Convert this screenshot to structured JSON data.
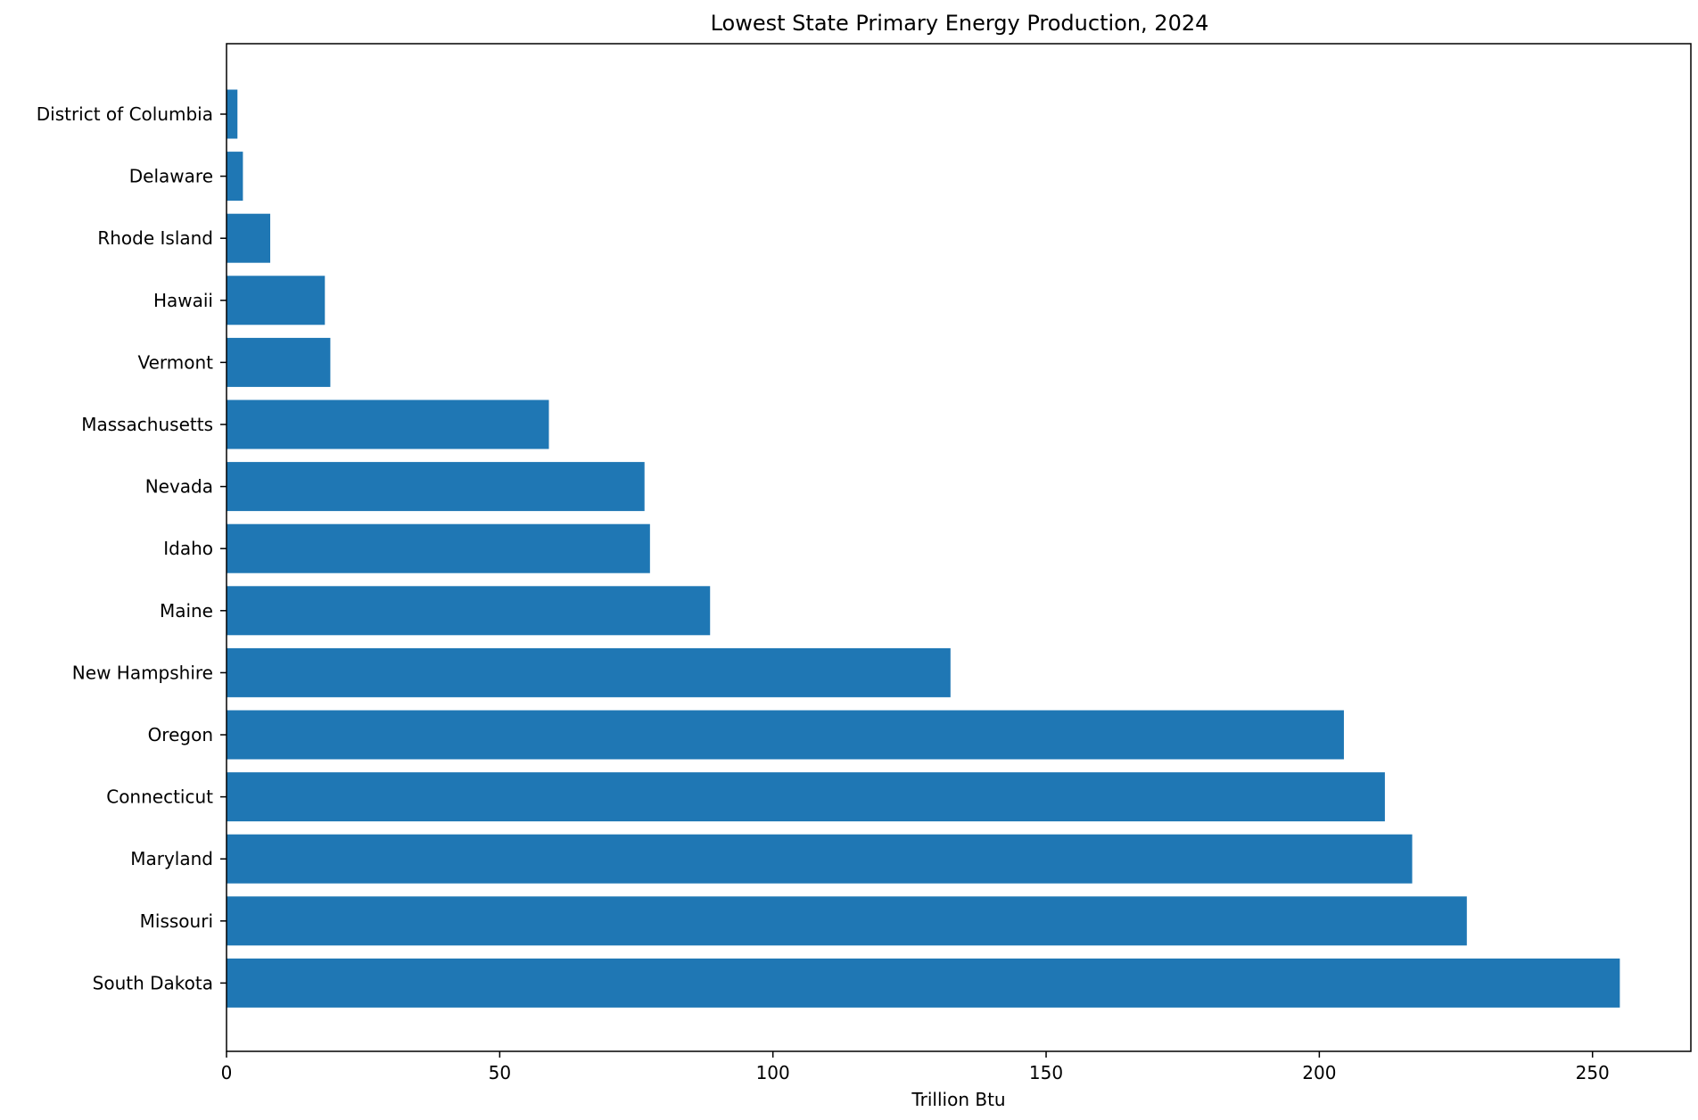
{
  "chart_data": {
    "type": "bar",
    "orientation": "horizontal",
    "title": "Lowest State Primary Energy Production, 2024",
    "xlabel": "Trillion Btu",
    "ylabel": "",
    "xlim": [
      0,
      268
    ],
    "x_ticks": [
      0,
      50,
      100,
      150,
      200,
      250
    ],
    "x_tick_labels": [
      "0",
      "50",
      "100",
      "150",
      "200",
      "250"
    ],
    "grid": false,
    "legend": "none",
    "bar_color": "#1f77b4",
    "categories": [
      "District of Columbia",
      "Delaware",
      "Rhode Island",
      "Hawaii",
      "Vermont",
      "Massachusetts",
      "Nevada",
      "Idaho",
      "Maine",
      "New Hampshire",
      "Oregon",
      "Connecticut",
      "Maryland",
      "Missouri",
      "South Dakota"
    ],
    "values": [
      2,
      3,
      8,
      18,
      19,
      59,
      76.5,
      77.5,
      88.5,
      132.5,
      204.5,
      212,
      217,
      227,
      255
    ]
  }
}
